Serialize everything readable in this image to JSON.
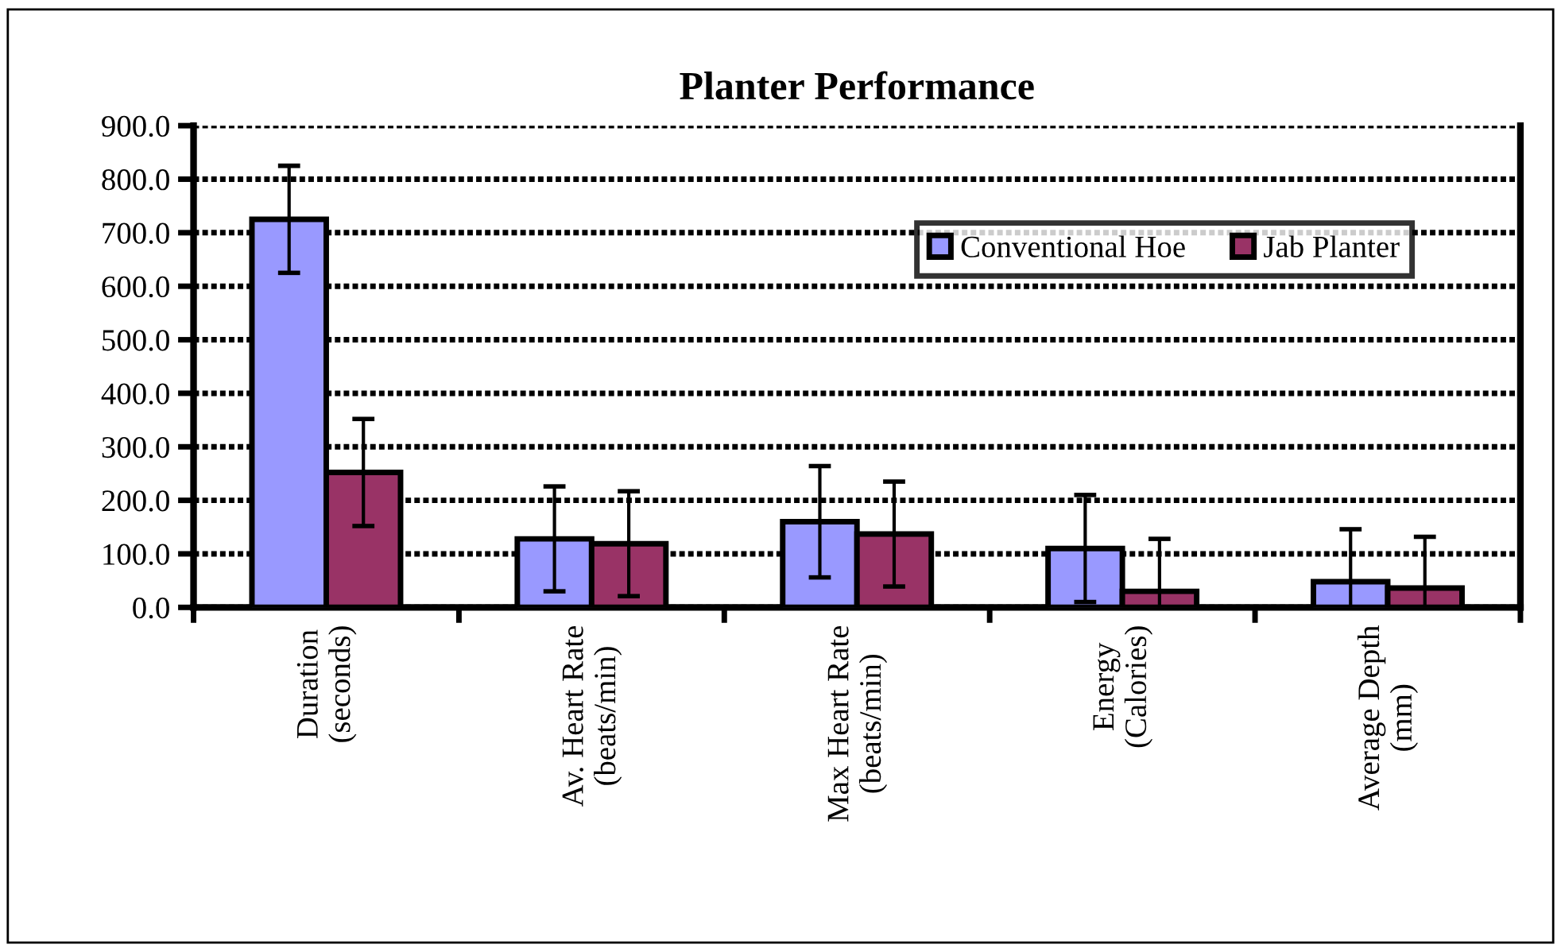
{
  "chart_data": {
    "type": "bar",
    "title": "Planter Performance",
    "categories": [
      "Duration\n(seconds)",
      "Av. Heart Rate\n(beats/min)",
      "Max Heart Rate\n(beats/min)",
      "Energy\n(Calories)",
      "Average Depth\n(mm)"
    ],
    "series": [
      {
        "name": "Conventional Hoe",
        "color": "#9999ff",
        "values": [
          725,
          128,
          160,
          110,
          48
        ],
        "errors": [
          100,
          98,
          104,
          100,
          98
        ]
      },
      {
        "name": "Jab Planter",
        "color": "#993366",
        "values": [
          252,
          119,
          137,
          30,
          36
        ],
        "errors": [
          100,
          98,
          98,
          98,
          96
        ]
      }
    ],
    "ylim": [
      0,
      900
    ],
    "yticks": [
      {
        "value": 0,
        "label": "0.0"
      },
      {
        "value": 100,
        "label": "100.0"
      },
      {
        "value": 200,
        "label": "200.0"
      },
      {
        "value": 300,
        "label": "300.0"
      },
      {
        "value": 400,
        "label": "400.0"
      },
      {
        "value": 500,
        "label": "500.0"
      },
      {
        "value": 600,
        "label": "600.0"
      },
      {
        "value": 700,
        "label": "700.0"
      },
      {
        "value": 800,
        "label": "800.0"
      },
      {
        "value": 900,
        "label": "900.0"
      }
    ],
    "grid": "y",
    "legend": "top right"
  }
}
